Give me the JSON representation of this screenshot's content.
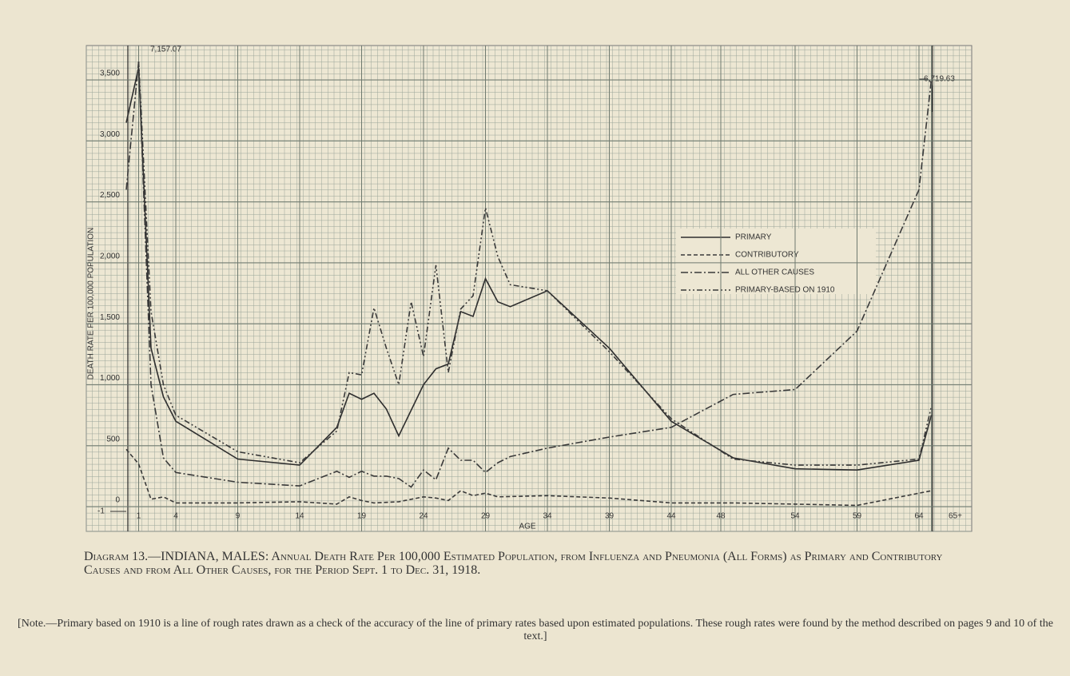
{
  "chart_data": {
    "type": "line",
    "title": "Diagram 13.—INDIANA, MALES: Annual Death Rate Per 100,000 Estimated Population, from Influenza and Pneumonia (All Forms) as Primary and Contributory Causes and from All Other Causes, for the Period Sept. 1 to Dec. 31, 1918.",
    "note": "[Note.—Primary based on 1910 is a line of rough rates drawn as a check of the accuracy of the line of primary rates based upon estimated populations. These rough rates were found by the method described on pages 9 and 10 of the text.]",
    "x_label": "AGE",
    "y_label": "DEATH RATE PER 100,000 POPULATION",
    "annotations": [
      "7,157.07",
      "6,719.63",
      "-1"
    ],
    "xlim": [
      0,
      65
    ],
    "xticks": [
      1,
      4,
      9,
      14,
      19,
      24,
      29,
      34,
      39,
      44,
      48,
      54,
      59,
      64,
      {
        "value": 65,
        "label": "65+"
      }
    ],
    "ylim": [
      0,
      3500
    ],
    "yticks": [
      0,
      500,
      {
        "value": 1000,
        "label": "1,000"
      },
      {
        "value": 1500,
        "label": "1,500"
      },
      {
        "value": 2000,
        "label": "2,000"
      },
      {
        "value": 2500,
        "label": "2,500"
      },
      {
        "value": 3000,
        "label": "3,000"
      },
      {
        "value": 3500,
        "label": "3,500"
      }
    ],
    "grid": true,
    "series": [
      {
        "name": "PRIMARY",
        "color": "#2e2e2e",
        "dash": "none",
        "x": [
          0,
          1,
          2,
          3,
          4,
          9,
          14,
          17,
          18,
          19,
          20,
          21,
          22,
          24,
          25,
          26,
          27,
          28,
          29,
          30,
          31,
          34,
          39,
          44,
          49,
          54,
          59,
          64,
          65
        ],
        "values": [
          3150,
          3600,
          1300,
          900,
          700,
          390,
          340,
          650,
          930,
          880,
          930,
          800,
          580,
          1000,
          1130,
          1170,
          1600,
          1560,
          1870,
          1680,
          1640,
          1770,
          1300,
          700,
          400,
          310,
          300,
          380,
          750
        ]
      },
      {
        "name": "CONTRIBUTORY",
        "color": "#3a3a3a",
        "dash": "5 3",
        "x": [
          0,
          1,
          2,
          3,
          4,
          9,
          14,
          17,
          18,
          19,
          20,
          22,
          24,
          25,
          26,
          27,
          28,
          29,
          30,
          34,
          39,
          44,
          49,
          54,
          59,
          64,
          65
        ],
        "values": [
          470,
          350,
          60,
          80,
          30,
          30,
          40,
          20,
          80,
          50,
          30,
          40,
          80,
          70,
          50,
          130,
          90,
          110,
          80,
          90,
          70,
          30,
          30,
          20,
          10,
          110,
          130
        ]
      },
      {
        "name": "ALL OTHER CAUSES",
        "color": "#3a3a3a",
        "dash": "9 3 2 3",
        "x": [
          0,
          1,
          2,
          3,
          4,
          9,
          14,
          17,
          18,
          19,
          20,
          21,
          22,
          23,
          24,
          25,
          26,
          27,
          28,
          29,
          30,
          31,
          34,
          39,
          44,
          49,
          54,
          59,
          64,
          65
        ],
        "values": [
          2600,
          3650,
          1000,
          400,
          280,
          200,
          170,
          290,
          240,
          290,
          250,
          250,
          230,
          160,
          300,
          220,
          480,
          380,
          380,
          280,
          360,
          410,
          480,
          570,
          650,
          920,
          960,
          1440,
          2600,
          3500
        ]
      },
      {
        "name": "PRIMARY-BASED ON 1910",
        "color": "#3a3a3a",
        "dash": "7 3 2 3 2 3",
        "x": [
          1,
          2,
          3,
          4,
          9,
          14,
          17,
          18,
          19,
          20,
          21,
          22,
          23,
          24,
          25,
          26,
          27,
          28,
          29,
          30,
          31,
          34,
          39,
          44,
          49,
          54,
          59,
          64,
          65
        ],
        "values": [
          3650,
          1600,
          1000,
          750,
          450,
          360,
          620,
          1100,
          1080,
          1630,
          1300,
          1000,
          1680,
          1230,
          1980,
          1100,
          1620,
          1730,
          2450,
          2050,
          1820,
          1770,
          1270,
          720,
          390,
          340,
          340,
          390,
          820
        ]
      }
    ]
  }
}
